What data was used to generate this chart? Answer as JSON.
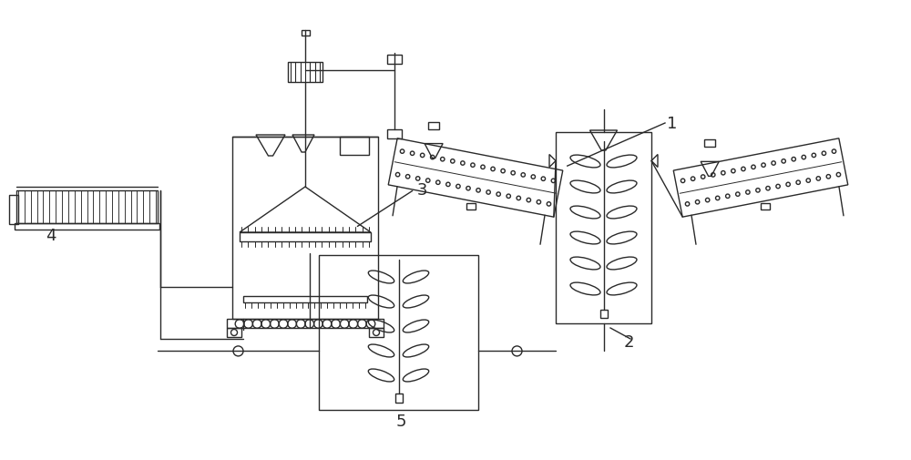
{
  "bg_color": "#ffffff",
  "line_color": "#2a2a2a",
  "lw": 1.0,
  "fig_width": 10.0,
  "fig_height": 5.06,
  "dpi": 100
}
